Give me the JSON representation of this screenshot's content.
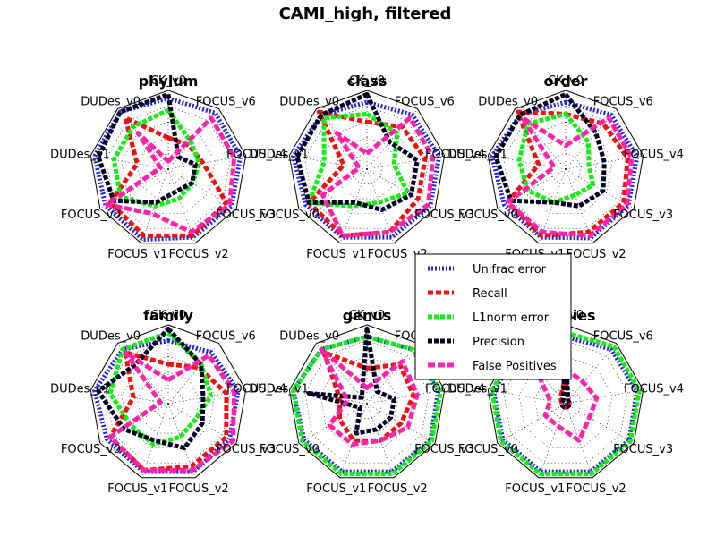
{
  "chart_data": {
    "title": "CAMI_high, filtered",
    "type": "radar",
    "axes": [
      "CK_v0",
      "FOCUS_v6",
      "FOCUS_v4",
      "FOCUS_v3",
      "FOCUS_v2",
      "FOCUS_v1",
      "FOCUS_v0",
      "DUDes_v1",
      "DUDes_v0"
    ],
    "rlim": [
      0,
      1
    ],
    "grid": true,
    "legend_placement": "center-right",
    "series_styles": [
      {
        "name": "Unifrac error",
        "color": "#2222dd",
        "dash": "2,2"
      },
      {
        "name": "Recall",
        "color": "#ee1111",
        "dash": "6,3"
      },
      {
        "name": "L1norm error",
        "color": "#11ee11",
        "dash": "5,2"
      },
      {
        "name": "Precision",
        "color": "#000022",
        "dash": "5,2"
      },
      {
        "name": "False Positives",
        "color": "#ff22aa",
        "dash": "8,3"
      }
    ],
    "panels": [
      {
        "title": "phylum",
        "values": {
          "Unifrac error": [
            0.9,
            0.93,
            0.93,
            0.93,
            0.92,
            0.95,
            0.92,
            0.95,
            0.95
          ],
          "Recall": [
            0.4,
            0.4,
            0.45,
            0.85,
            0.9,
            0.9,
            0.85,
            0.4,
            0.85
          ],
          "L1norm error": [
            0.75,
            0.45,
            0.4,
            0.35,
            0.4,
            0.5,
            0.7,
            0.7,
            0.7
          ],
          "Precision": [
            0.95,
            0.2,
            0.35,
            0.35,
            0.3,
            0.45,
            0.8,
            0.9,
            0.95
          ],
          "False Positives": [
            0.1,
            0.85,
            0.85,
            0.9,
            0.85,
            0.6,
            0.9,
            0.1,
            0.6
          ]
        }
      },
      {
        "title": "class",
        "values": {
          "Unifrac error": [
            0.85,
            0.9,
            0.93,
            0.93,
            0.92,
            0.92,
            0.9,
            0.95,
            0.9
          ],
          "Recall": [
            0.6,
            0.7,
            0.75,
            0.75,
            0.85,
            0.9,
            0.85,
            0.3,
            0.95
          ],
          "L1norm error": [
            0.7,
            0.6,
            0.35,
            0.6,
            0.45,
            0.5,
            0.85,
            0.55,
            0.85
          ],
          "Precision": [
            0.95,
            0.45,
            0.65,
            0.65,
            0.55,
            0.45,
            0.85,
            0.9,
            0.9
          ],
          "False Positives": [
            0.2,
            0.85,
            0.85,
            0.9,
            0.85,
            0.9,
            0.65,
            0.1,
            0.6
          ]
        }
      },
      {
        "title": "order",
        "values": {
          "Unifrac error": [
            0.85,
            0.9,
            0.92,
            0.92,
            0.93,
            0.92,
            0.9,
            0.95,
            0.9
          ],
          "Recall": [
            0.7,
            0.75,
            0.8,
            0.85,
            0.85,
            0.9,
            0.85,
            0.35,
            0.95
          ],
          "L1norm error": [
            0.7,
            0.45,
            0.3,
            0.4,
            0.35,
            0.45,
            0.55,
            0.6,
            0.75
          ],
          "Precision": [
            0.95,
            0.6,
            0.5,
            0.55,
            0.5,
            0.45,
            0.8,
            0.9,
            0.9
          ],
          "False Positives": [
            0.3,
            0.85,
            0.85,
            0.9,
            0.9,
            0.85,
            0.85,
            0.15,
            0.85
          ]
        }
      },
      {
        "title": "family",
        "values": {
          "Unifrac error": [
            0.8,
            0.85,
            0.9,
            0.9,
            0.92,
            0.92,
            0.9,
            0.95,
            0.9
          ],
          "Recall": [
            0.5,
            0.6,
            0.75,
            0.85,
            0.85,
            0.9,
            0.85,
            0.45,
            0.85
          ],
          "L1norm error": [
            0.9,
            0.65,
            0.55,
            0.4,
            0.45,
            0.55,
            0.55,
            0.75,
            0.9
          ],
          "Precision": [
            0.95,
            0.65,
            0.45,
            0.5,
            0.6,
            0.5,
            0.65,
            0.9,
            0.65
          ],
          "False Positives": [
            0.3,
            0.8,
            0.85,
            0.95,
            0.9,
            0.9,
            0.85,
            0.1,
            0.85
          ]
        }
      },
      {
        "title": "genus",
        "values": {
          "Unifrac error": [
            0.85,
            0.9,
            0.92,
            0.93,
            0.92,
            0.92,
            0.92,
            0.95,
            0.9
          ],
          "Recall": [
            0.45,
            0.65,
            0.6,
            0.5,
            0.5,
            0.5,
            0.4,
            0.35,
            0.85
          ],
          "L1norm error": [
            0.85,
            0.9,
            0.95,
            0.95,
            0.95,
            0.95,
            0.95,
            0.95,
            0.9
          ],
          "Precision": [
            0.95,
            0.2,
            0.35,
            0.35,
            0.35,
            0.4,
            0.1,
            0.75,
            0.1
          ],
          "False Positives": [
            0.2,
            0.7,
            0.65,
            0.6,
            0.5,
            0.55,
            0.55,
            0.25,
            0.9
          ]
        }
      },
      {
        "title": "species",
        "values": {
          "Unifrac error": [
            0.85,
            0.9,
            0.92,
            0.93,
            0.92,
            0.92,
            0.92,
            0.93,
            0.9
          ],
          "Recall": [
            0.35,
            0.05,
            0.05,
            0.05,
            0.05,
            0.05,
            0.05,
            0.05,
            0.1
          ],
          "L1norm error": [
            0.9,
            0.95,
            0.95,
            0.95,
            0.95,
            0.95,
            0.95,
            0.95,
            0.95
          ],
          "Precision": [
            0.7,
            0.05,
            0.05,
            0.05,
            0.05,
            0.05,
            0.05,
            0.05,
            0.05
          ],
          "False Positives": [
            0.45,
            0.35,
            0.4,
            0.35,
            0.5,
            0.3,
            0.3,
            0.2,
            0.6
          ]
        }
      }
    ]
  }
}
